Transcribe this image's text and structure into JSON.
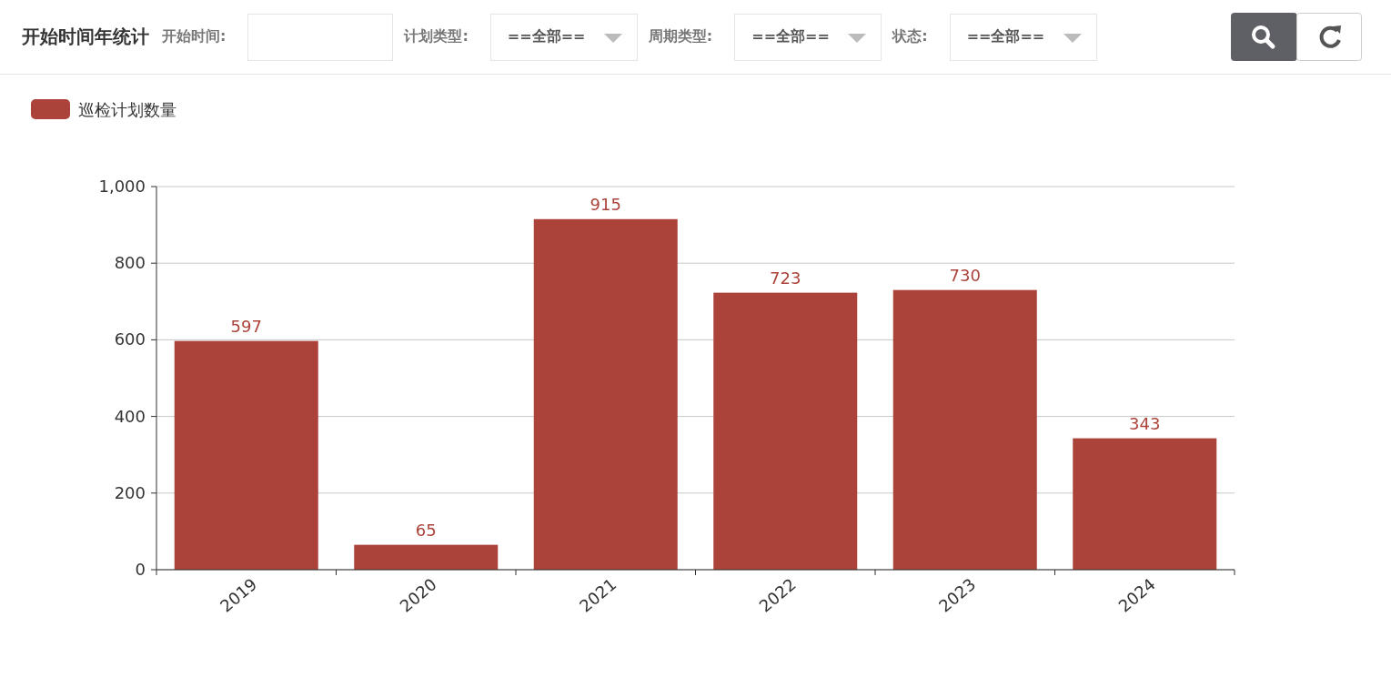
{
  "chart_data": {
    "type": "bar",
    "title": "开始时间年统计",
    "annotations": [
      "开始时间:",
      "计划类型:",
      "==全部==",
      "周期类型:",
      "==全部==",
      "状态:",
      "==全部=="
    ],
    "categories": [
      "2019",
      "2020",
      "2021",
      "2022",
      "2023",
      "2024"
    ],
    "series": [
      {
        "name": "巡检计划数量",
        "color": "#ac433b",
        "values": [
          597,
          65,
          915,
          723,
          730,
          343
        ]
      }
    ],
    "ylim": [
      0,
      1000
    ],
    "yticks": [
      0,
      200,
      400,
      600,
      800,
      {
        "value": 1000,
        "label": "1,000"
      }
    ],
    "grid": "y",
    "legend": "top left",
    "data_labels": true
  }
}
